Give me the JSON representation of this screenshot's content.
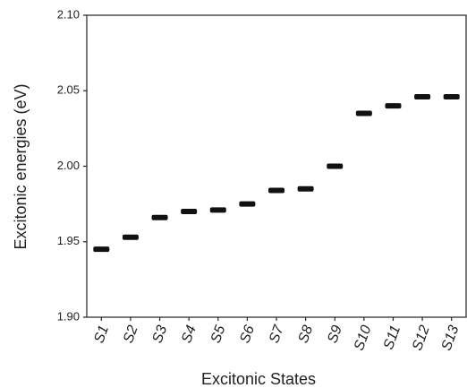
{
  "chart_data": {
    "type": "scatter",
    "x_label": "Excitonic States",
    "y_label": "Excitonic energies (eV)",
    "categories": [
      "S1",
      "S2",
      "S3",
      "S4",
      "S5",
      "S6",
      "S7",
      "S8",
      "S9",
      "S10",
      "S11",
      "S12",
      "S13"
    ],
    "values": [
      1.945,
      1.953,
      1.966,
      1.97,
      1.971,
      1.975,
      1.984,
      1.985,
      2.0,
      2.035,
      2.04,
      2.046,
      2.046
    ],
    "color": "#111111",
    "ylim": [
      1.9,
      2.1
    ],
    "yticks": [
      {
        "value": 1.9,
        "label": "1.90"
      },
      {
        "value": 1.95,
        "label": "1.95"
      },
      {
        "value": 2.0,
        "label": "2.00"
      },
      {
        "value": 2.05,
        "label": "2.05"
      },
      {
        "value": 2.1,
        "label": "2.10"
      }
    ],
    "grid": false
  }
}
